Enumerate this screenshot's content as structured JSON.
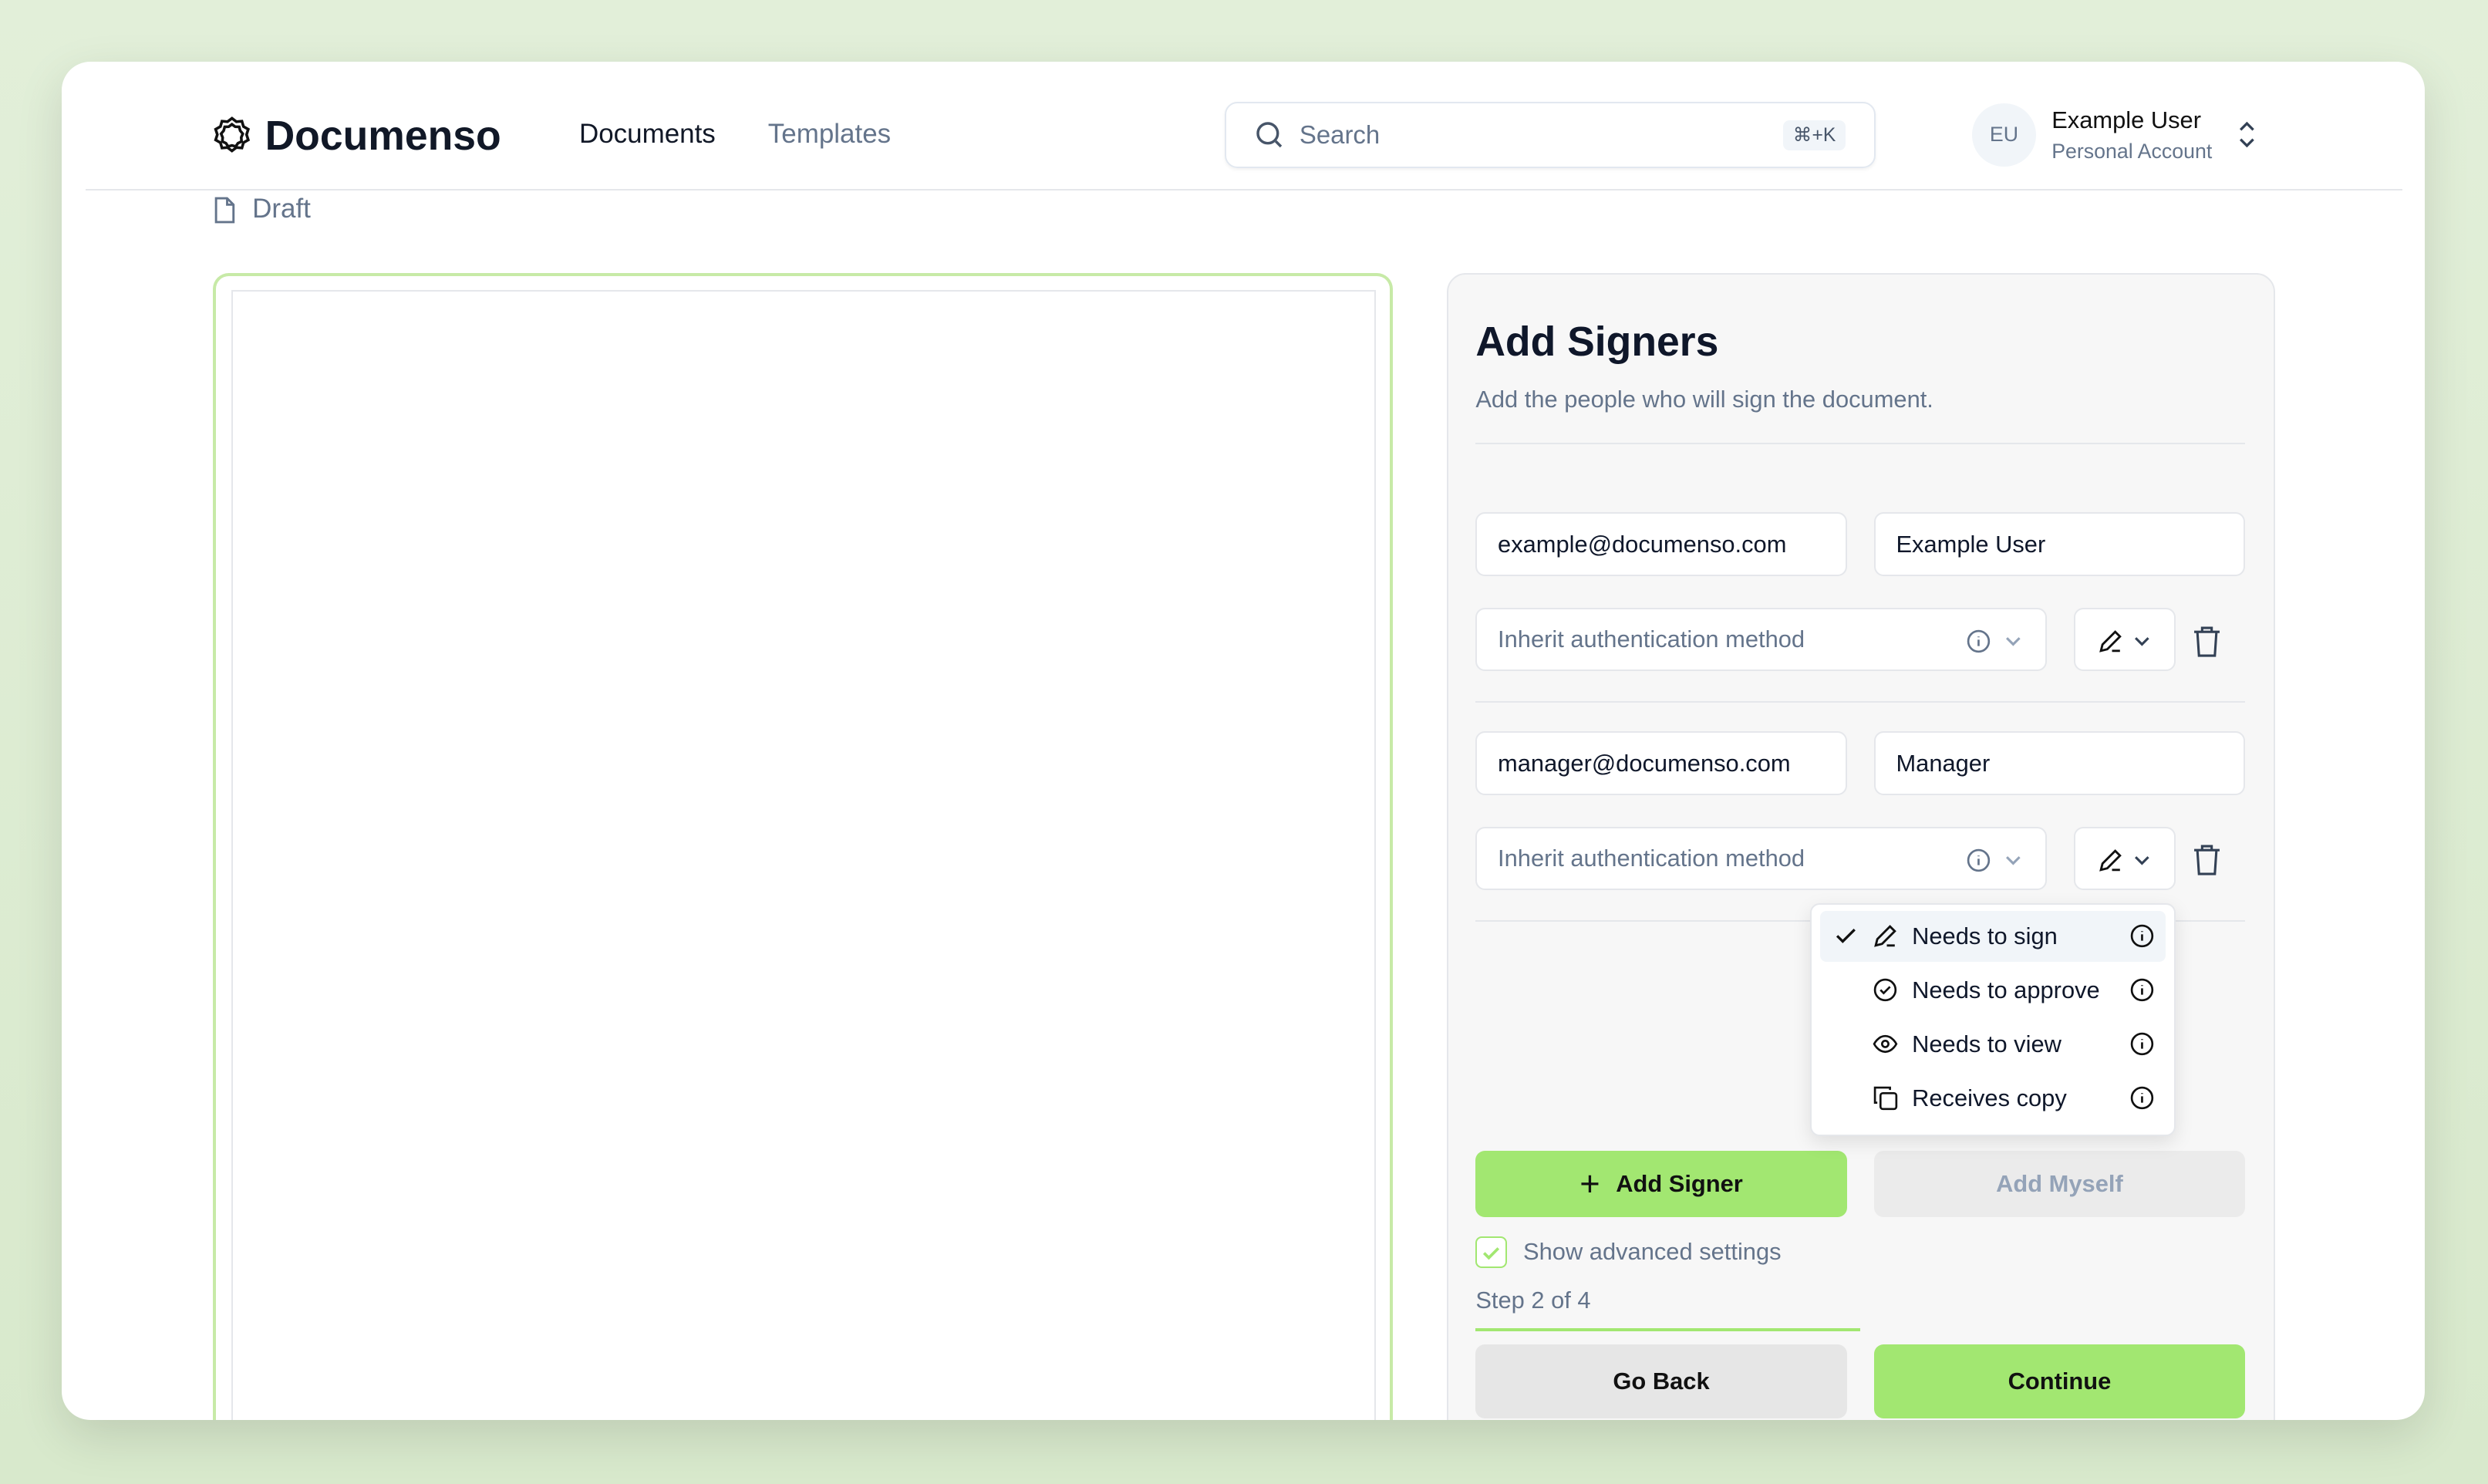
{
  "header": {
    "brand": "Documenso",
    "nav": [
      {
        "label": "Documents",
        "active": true
      },
      {
        "label": "Templates",
        "active": false
      }
    ],
    "search": {
      "placeholder": "Search",
      "shortcut": "⌘+K"
    },
    "user": {
      "initials": "EU",
      "name": "Example User",
      "account": "Personal Account"
    }
  },
  "breadcrumb": {
    "status": "Draft"
  },
  "panel": {
    "title": "Add Signers",
    "subtitle": "Add the people who will sign the document.",
    "signers": [
      {
        "email": "example@documenso.com",
        "name": "Example User",
        "auth_placeholder": "Inherit authentication method"
      },
      {
        "email": "manager@documenso.com",
        "name": "Manager",
        "auth_placeholder": "Inherit authentication method"
      }
    ],
    "add_signer_label": "Add Signer",
    "add_myself_label": "Add Myself",
    "advanced_label": "Show advanced settings",
    "advanced_checked": true,
    "step_text": "Step 2 of 4",
    "step_progress": 0.5,
    "go_back_label": "Go Back",
    "continue_label": "Continue"
  },
  "role_menu": {
    "items": [
      {
        "label": "Needs to sign",
        "icon": "pen-icon",
        "selected": true
      },
      {
        "label": "Needs to approve",
        "icon": "badge-check-icon",
        "selected": false
      },
      {
        "label": "Needs to view",
        "icon": "eye-icon",
        "selected": false
      },
      {
        "label": "Receives copy",
        "icon": "copy-icon",
        "selected": false
      }
    ]
  },
  "colors": {
    "accent": "#a2e771",
    "background": "#e2efd9"
  }
}
